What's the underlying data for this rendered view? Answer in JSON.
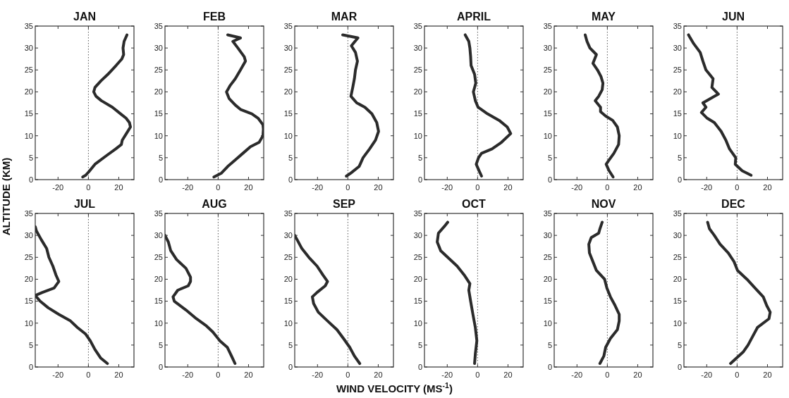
{
  "chart_data": [
    {
      "type": "line",
      "title": "JAN",
      "xlim": [
        -35,
        30
      ],
      "xticks": [
        -20,
        0,
        20
      ],
      "ylim": [
        0,
        35
      ],
      "yticks": [
        0,
        5,
        10,
        15,
        20,
        25,
        30,
        35
      ],
      "grid": false,
      "line_style": "solid",
      "ref_lines": [
        {
          "axis": "x",
          "value": 0,
          "line_style": "dotted",
          "color": "#555555"
        }
      ],
      "series": [
        {
          "color": "#2b2b2b",
          "x": [
            -3.8,
            -1.8,
            0.8,
            4.3,
            12,
            18,
            21.7,
            22.3,
            25,
            27.7,
            27,
            24.8,
            21.2,
            15.8,
            8.5,
            5,
            3.5,
            4.3,
            8.2,
            12.8,
            18.2,
            22,
            23.2,
            22.8,
            23.5,
            25.4
          ],
          "values": [
            0.6,
            1,
            2,
            3.5,
            5.5,
            7,
            8,
            9,
            10.5,
            12,
            13,
            14,
            15,
            16.5,
            18,
            19,
            20,
            21,
            22.5,
            24,
            26,
            27.5,
            28.5,
            30,
            31.5,
            33
          ]
        }
      ]
    },
    {
      "type": "line",
      "title": "FEB",
      "xlim": [
        -35,
        30
      ],
      "xticks": [
        -20,
        0,
        20
      ],
      "ylim": [
        0,
        35
      ],
      "yticks": [
        0,
        5,
        10,
        15,
        20,
        25,
        30,
        35
      ],
      "grid": false,
      "line_style": "solid",
      "ref_lines": [
        {
          "axis": "x",
          "value": 0,
          "line_style": "dotted",
          "color": "#555555"
        }
      ],
      "series": [
        {
          "color": "#2b2b2b",
          "x": [
            -2.8,
            2.2,
            6.3,
            11.3,
            16.3,
            21.3,
            27,
            29.5,
            29.8,
            29.5,
            26.3,
            22.2,
            14.7,
            11.3,
            7.2,
            5.5,
            8,
            11.3,
            14.7,
            18,
            17.2,
            13,
            9.7,
            14.7,
            6.3
          ],
          "values": [
            0.6,
            1.5,
            3,
            4.5,
            6,
            7.5,
            8.5,
            10,
            11.5,
            12.5,
            14,
            15,
            16,
            17,
            18.5,
            20,
            21.5,
            23,
            25,
            27,
            28,
            30,
            31.5,
            32.3,
            33
          ]
        }
      ]
    },
    {
      "type": "line",
      "title": "MAR",
      "xlim": [
        -35,
        30
      ],
      "xticks": [
        -20,
        0,
        20
      ],
      "ylim": [
        0,
        35
      ],
      "yticks": [
        0,
        5,
        10,
        15,
        20,
        25,
        30,
        35
      ],
      "grid": false,
      "line_style": "solid",
      "ref_lines": [
        {
          "axis": "x",
          "value": 0,
          "line_style": "dotted",
          "color": "#555555"
        }
      ],
      "series": [
        {
          "color": "#2b2b2b",
          "x": [
            -1,
            2,
            7.4,
            10,
            14.3,
            18.2,
            20.2,
            19,
            15.8,
            11.2,
            5.8,
            2,
            3.2,
            4.3,
            5,
            6.3,
            5,
            2.3,
            6.6,
            -3.4
          ],
          "values": [
            0.8,
            1.5,
            3,
            5,
            7,
            9,
            11,
            13,
            15,
            16.5,
            17.5,
            19,
            21,
            23,
            25,
            27,
            29,
            30.5,
            32.3,
            33
          ]
        }
      ]
    },
    {
      "type": "line",
      "title": "APRIL",
      "xlim": [
        -35,
        30
      ],
      "xticks": [
        -20,
        0,
        20
      ],
      "ylim": [
        0,
        35
      ],
      "yticks": [
        0,
        5,
        10,
        15,
        20,
        25,
        30,
        35
      ],
      "grid": false,
      "line_style": "solid",
      "ref_lines": [
        {
          "axis": "x",
          "value": 0,
          "line_style": "dotted",
          "color": "#555555"
        }
      ],
      "series": [
        {
          "color": "#2b2b2b",
          "x": [
            2.6,
            1,
            -0.9,
            0.6,
            2.6,
            9.5,
            15.7,
            21.8,
            19.5,
            14.2,
            6.5,
            0.3,
            -1.5,
            -2.8,
            -1.2,
            -2,
            -4.3,
            -4.6,
            -5.1,
            -5.8,
            -8.2
          ],
          "values": [
            0.8,
            2,
            3.5,
            5,
            6,
            7,
            8.5,
            10.5,
            12,
            13.5,
            15,
            16.5,
            18,
            20,
            22,
            24,
            26,
            28,
            30,
            31.5,
            33
          ]
        }
      ]
    },
    {
      "type": "line",
      "title": "MAY",
      "xlim": [
        -35,
        30
      ],
      "xticks": [
        -20,
        0,
        20
      ],
      "ylim": [
        0,
        35
      ],
      "yticks": [
        0,
        5,
        10,
        15,
        20,
        25,
        30,
        35
      ],
      "grid": false,
      "line_style": "solid",
      "ref_lines": [
        {
          "axis": "x",
          "value": 0,
          "line_style": "dotted",
          "color": "#555555"
        }
      ],
      "series": [
        {
          "color": "#2b2b2b",
          "x": [
            3.8,
            1.2,
            -0.8,
            1.2,
            4.3,
            7.4,
            7.8,
            6.6,
            3.5,
            -1.1,
            -4.5,
            -4.5,
            -8,
            -5.7,
            -3.4,
            -2.9,
            -4.2,
            -6.5,
            -9.5,
            -7.2,
            -11.5,
            -13.4,
            -14.6
          ],
          "values": [
            0.6,
            2,
            3.5,
            4.5,
            6,
            8,
            10,
            12,
            13.5,
            14.5,
            15.5,
            16.5,
            18,
            19,
            20.5,
            22,
            23.5,
            25,
            26.5,
            28.5,
            30,
            31.5,
            33
          ]
        }
      ]
    },
    {
      "type": "line",
      "title": "JUN",
      "xlim": [
        -35,
        30
      ],
      "xticks": [
        -20,
        0,
        20
      ],
      "ylim": [
        0,
        35
      ],
      "yticks": [
        0,
        5,
        10,
        15,
        20,
        25,
        30,
        35
      ],
      "grid": false,
      "line_style": "solid",
      "ref_lines": [
        {
          "axis": "x",
          "value": 0,
          "line_style": "dotted",
          "color": "#555555"
        }
      ],
      "series": [
        {
          "color": "#2b2b2b",
          "x": [
            9.2,
            3.4,
            -1.2,
            -0.9,
            -5,
            -7.4,
            -10.5,
            -15,
            -19.7,
            -23.5,
            -20.5,
            -22.5,
            -17.4,
            -12.3,
            -16.6,
            -15.8,
            -20.5,
            -22.5,
            -24.3,
            -28.6,
            -31.2,
            -32
          ],
          "values": [
            1,
            2,
            3.5,
            5,
            7,
            9,
            11,
            13,
            14,
            15.3,
            16.5,
            17.5,
            18.5,
            19.5,
            21,
            23,
            25,
            27,
            29,
            31,
            32.5,
            33
          ]
        }
      ]
    },
    {
      "type": "line",
      "title": "JUL",
      "ylabel": "ALTITUDE (KM)",
      "xlim": [
        -35,
        30
      ],
      "xticks": [
        -20,
        0,
        20
      ],
      "ylim": [
        0,
        35
      ],
      "yticks": [
        0,
        5,
        10,
        15,
        20,
        25,
        30,
        35
      ],
      "grid": false,
      "line_style": "solid",
      "ref_lines": [
        {
          "axis": "x",
          "value": 0,
          "line_style": "dotted",
          "color": "#555555"
        }
      ],
      "series": [
        {
          "color": "#2b2b2b",
          "x": [
            12.5,
            8.2,
            4.3,
            1.2,
            -1.8,
            -7.2,
            -11.8,
            -19.5,
            -26.5,
            -31.8,
            -35,
            -30.3,
            -22.6,
            -19.5,
            -21.4,
            -23.4,
            -26,
            -27.5,
            -31,
            -34.2,
            -35
          ],
          "values": [
            0.8,
            2,
            4,
            6,
            7.5,
            9,
            10.5,
            12,
            13.5,
            15,
            16.3,
            17,
            18,
            19.5,
            21,
            23,
            25,
            27,
            29,
            31,
            32
          ]
        }
      ]
    },
    {
      "type": "line",
      "title": "AUG",
      "xlim": [
        -35,
        30
      ],
      "xticks": [
        -20,
        0,
        20
      ],
      "ylim": [
        0,
        35
      ],
      "yticks": [
        0,
        5,
        10,
        15,
        20,
        25,
        30,
        35
      ],
      "grid": false,
      "line_style": "solid",
      "ref_lines": [
        {
          "axis": "x",
          "value": 0,
          "line_style": "dotted",
          "color": "#555555"
        }
      ],
      "series": [
        {
          "color": "#2b2b2b",
          "x": [
            11.1,
            8.8,
            6,
            1.1,
            -3.5,
            -8.2,
            -14.3,
            -21.2,
            -28.9,
            -29.7,
            -26.6,
            -19.7,
            -18.2,
            -18.2,
            -21.2,
            -27.4,
            -31.2,
            -32.8,
            -35
          ],
          "values": [
            0.8,
            2.5,
            4.5,
            6,
            8,
            9.5,
            11,
            13,
            15,
            16,
            17.5,
            18.5,
            19.5,
            20.5,
            22.5,
            24.5,
            26.5,
            28.5,
            30
          ]
        }
      ]
    },
    {
      "type": "line",
      "title": "SEP",
      "xlabel": "WIND VELOCITY (MS$^{-1}$)",
      "xlim": [
        -35,
        30
      ],
      "xticks": [
        -20,
        0,
        20
      ],
      "ylim": [
        0,
        35
      ],
      "yticks": [
        0,
        5,
        10,
        15,
        20,
        25,
        30,
        35
      ],
      "grid": false,
      "line_style": "solid",
      "ref_lines": [
        {
          "axis": "x",
          "value": 0,
          "line_style": "dotted",
          "color": "#555555"
        }
      ],
      "series": [
        {
          "color": "#2b2b2b",
          "x": [
            7.8,
            4.3,
            1.2,
            -2.9,
            -7.2,
            -13.4,
            -19.5,
            -22.6,
            -23.4,
            -20.3,
            -14.9,
            -13.4,
            -16.5,
            -20.3,
            -25.7,
            -30.3,
            -33.4,
            -35
          ],
          "values": [
            0.8,
            2.5,
            4.5,
            6.5,
            8.5,
            10.5,
            12.5,
            14.5,
            16,
            17,
            18.5,
            19.5,
            21,
            23,
            25,
            27,
            29,
            30
          ]
        }
      ]
    },
    {
      "type": "line",
      "title": "OCT",
      "xlim": [
        -35,
        30
      ],
      "xticks": [
        -20,
        0,
        20
      ],
      "ylim": [
        0,
        35
      ],
      "yticks": [
        0,
        5,
        10,
        15,
        20,
        25,
        30,
        35
      ],
      "grid": false,
      "line_style": "solid",
      "ref_lines": [
        {
          "axis": "x",
          "value": 0,
          "line_style": "dotted",
          "color": "#555555"
        }
      ],
      "series": [
        {
          "color": "#2b2b2b",
          "x": [
            -2,
            -1.5,
            -0.5,
            -1.5,
            -3.1,
            -4.6,
            -5.8,
            -5.1,
            -8.9,
            -13.5,
            -19.7,
            -24.3,
            -26.6,
            -25.8,
            -22,
            -19.7
          ],
          "values": [
            0.8,
            3,
            6,
            9,
            12,
            15,
            17.5,
            19,
            21,
            23,
            25,
            26.5,
            28.5,
            30.5,
            32,
            33
          ]
        }
      ]
    },
    {
      "type": "line",
      "title": "NOV",
      "xlim": [
        -35,
        30
      ],
      "xticks": [
        -20,
        0,
        20
      ],
      "ylim": [
        0,
        35
      ],
      "yticks": [
        0,
        5,
        10,
        15,
        20,
        25,
        30,
        35
      ],
      "grid": false,
      "line_style": "solid",
      "ref_lines": [
        {
          "axis": "x",
          "value": 0,
          "line_style": "dotted",
          "color": "#555555"
        }
      ],
      "series": [
        {
          "color": "#2b2b2b",
          "x": [
            -4.9,
            -2.3,
            -1.1,
            2,
            6.6,
            7.8,
            7.8,
            5.1,
            2,
            -0.3,
            -1.8,
            -7.2,
            -9.5,
            -11.8,
            -12.2,
            -10.6,
            -5.7,
            -4.9,
            -3.4
          ],
          "values": [
            0.8,
            2.5,
            4.5,
            6.5,
            8.5,
            10.5,
            12,
            14,
            16,
            18,
            20,
            22,
            24,
            26,
            28,
            29.5,
            30.5,
            31.5,
            33
          ]
        }
      ]
    },
    {
      "type": "line",
      "title": "DEC",
      "xlim": [
        -35,
        30
      ],
      "xticks": [
        -20,
        0,
        20
      ],
      "ylim": [
        0,
        35
      ],
      "yticks": [
        0,
        5,
        10,
        15,
        20,
        25,
        30,
        35
      ],
      "grid": false,
      "line_style": "solid",
      "ref_lines": [
        {
          "axis": "x",
          "value": 0,
          "line_style": "dotted",
          "color": "#555555"
        }
      ],
      "series": [
        {
          "color": "#2b2b2b",
          "x": [
            -4.3,
            -0.5,
            4.2,
            7.2,
            10.3,
            13.4,
            21,
            21.8,
            19.5,
            17.2,
            11.8,
            6.5,
            0.3,
            -2,
            -5.8,
            -11.2,
            -15,
            -18.2,
            -19.4
          ],
          "values": [
            0.8,
            2,
            3.5,
            5,
            7,
            9,
            11,
            12.5,
            14,
            16,
            18,
            20,
            22,
            24,
            26,
            28,
            30,
            31.5,
            33
          ]
        }
      ]
    }
  ]
}
